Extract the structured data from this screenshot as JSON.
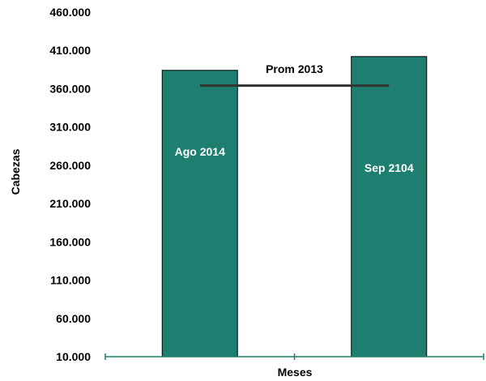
{
  "chart_data": {
    "type": "bar",
    "title": "",
    "xlabel": "Meses",
    "ylabel": "Cabezas",
    "categories": [
      "Ago 2014",
      "Sep 2104"
    ],
    "values": [
      384000,
      402000
    ],
    "ylim": [
      10000,
      460000
    ],
    "yticks": [
      10000,
      60000,
      110000,
      160000,
      210000,
      260000,
      310000,
      360000,
      410000,
      460000
    ],
    "ytick_labels": [
      "10.000",
      "60.000",
      "110.000",
      "160.000",
      "210.000",
      "260.000",
      "310.000",
      "360.000",
      "410.000",
      "460.000"
    ],
    "reference_line": {
      "label": "Prom 2013",
      "value": 364000
    },
    "grid": false,
    "legend": "none",
    "colors": {
      "bar": "#1e7f71",
      "bar_border": "#000000",
      "axis": "#1e7f71",
      "reference_line": "#333333"
    }
  }
}
